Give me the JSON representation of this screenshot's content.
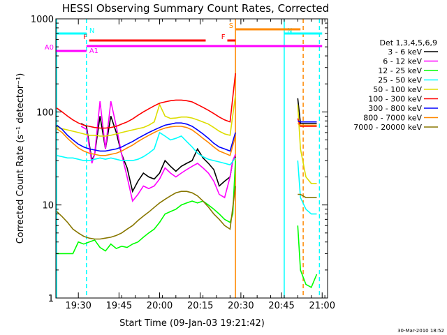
{
  "chart_data": {
    "type": "line",
    "title": "HESSI Observing Summary Count Rates, Corrected",
    "xlabel": "Start Time (09-Jan-03 19:21:42)",
    "ylabel": "Corrected Count Rate (s⁻¹ detector⁻¹)",
    "yscale": "log",
    "ylim": [
      1,
      1000
    ],
    "xlim": [
      "19:21:42",
      "21:02:00"
    ],
    "x_ticks": [
      "19:30",
      "19:45",
      "20:00",
      "20:15",
      "20:30",
      "20:45",
      "21:00"
    ],
    "y_ticks": [
      "1",
      "10",
      "100",
      "1000"
    ],
    "grid": false,
    "legend_title": "Det 1,3,4,5,6,9",
    "legend_position": "right",
    "series": [
      {
        "name": "3 - 6 keV",
        "color": "#000000",
        "x": [
          "19:31",
          "19:33",
          "19:35",
          "19:36",
          "19:38",
          "19:40",
          "19:42",
          "19:44",
          "19:46",
          "19:48",
          "19:50",
          "19:52",
          "19:54",
          "19:56",
          "19:58",
          "20:00",
          "20:02",
          "20:04",
          "20:06",
          "20:08",
          "20:10",
          "20:12",
          "20:14",
          "20:16",
          "20:18",
          "20:20",
          "20:22",
          "20:24",
          "20:26",
          "20:27",
          "20:28",
          "20:51",
          "20:52",
          "20:54",
          "20:56",
          "20:58"
        ],
        "values": [
          75,
          70,
          30,
          35,
          90,
          40,
          90,
          60,
          35,
          25,
          14,
          18,
          22,
          20,
          19,
          22,
          30,
          26,
          23,
          26,
          28,
          30,
          40,
          32,
          28,
          24,
          16,
          18,
          20,
          30,
          33,
          140,
          75,
          75,
          75,
          75
        ]
      },
      {
        "name": "6 - 12 keV",
        "color": "#ff00ff",
        "x": [
          "19:31",
          "19:33",
          "19:35",
          "19:36",
          "19:38",
          "19:40",
          "19:42",
          "19:44",
          "19:46",
          "19:48",
          "19:50",
          "19:52",
          "19:54",
          "19:56",
          "19:58",
          "20:00",
          "20:02",
          "20:04",
          "20:06",
          "20:08",
          "20:10",
          "20:12",
          "20:14",
          "20:16",
          "20:18",
          "20:20",
          "20:22",
          "20:24",
          "20:26",
          "20:27",
          "20:28"
        ],
        "values": [
          70,
          65,
          28,
          35,
          130,
          40,
          130,
          70,
          35,
          20,
          11,
          13,
          16,
          15,
          16,
          19,
          25,
          22,
          20,
          22,
          24,
          26,
          28,
          25,
          22,
          18,
          13,
          12,
          20,
          30,
          35
        ]
      },
      {
        "name": "12 - 25 keV",
        "color": "#00ff00",
        "x": [
          "19:22",
          "19:24",
          "19:26",
          "19:28",
          "19:30",
          "19:32",
          "19:34",
          "19:36",
          "19:38",
          "19:40",
          "19:42",
          "19:44",
          "19:46",
          "19:48",
          "19:50",
          "19:52",
          "19:54",
          "19:56",
          "19:58",
          "20:00",
          "20:02",
          "20:04",
          "20:06",
          "20:08",
          "20:10",
          "20:12",
          "20:14",
          "20:16",
          "20:18",
          "20:20",
          "20:22",
          "20:24",
          "20:26",
          "20:27",
          "20:28",
          "20:51",
          "20:52",
          "20:54",
          "20:56",
          "20:58"
        ],
        "values": [
          3,
          3,
          3,
          3,
          4,
          3.8,
          4,
          4.2,
          3.5,
          3.2,
          3.8,
          3.4,
          3.6,
          3.5,
          3.8,
          4,
          4.5,
          5,
          5.5,
          6.5,
          8,
          8.5,
          9,
          10,
          10.5,
          11,
          10.5,
          11,
          10,
          9,
          8,
          7,
          6.5,
          8,
          30,
          6,
          2,
          1.4,
          1.3,
          1.8
        ]
      },
      {
        "name": "25 - 50 keV",
        "color": "#00ffff",
        "x": [
          "19:22",
          "19:24",
          "19:26",
          "19:28",
          "19:30",
          "19:32",
          "19:34",
          "19:36",
          "19:38",
          "19:40",
          "19:42",
          "19:44",
          "19:46",
          "19:48",
          "19:50",
          "19:52",
          "19:54",
          "19:56",
          "19:58",
          "20:00",
          "20:02",
          "20:04",
          "20:06",
          "20:08",
          "20:10",
          "20:12",
          "20:14",
          "20:16",
          "20:18",
          "20:20",
          "20:22",
          "20:24",
          "20:26",
          "20:28",
          "20:51",
          "20:52",
          "20:54",
          "20:56",
          "20:58"
        ],
        "values": [
          34,
          33,
          32,
          32,
          31,
          30,
          30,
          31,
          32,
          31,
          32,
          31,
          30,
          30,
          30,
          31,
          33,
          36,
          40,
          60,
          55,
          50,
          52,
          55,
          48,
          42,
          36,
          33,
          31,
          30,
          29,
          28,
          27,
          32,
          30,
          12,
          9,
          8,
          8
        ]
      },
      {
        "name": "50 - 100 keV",
        "color": "#dddd00",
        "x": [
          "19:22",
          "19:24",
          "19:26",
          "19:28",
          "19:30",
          "19:32",
          "19:34",
          "19:36",
          "19:38",
          "19:40",
          "19:42",
          "19:44",
          "19:46",
          "19:48",
          "19:50",
          "19:52",
          "19:54",
          "19:56",
          "19:58",
          "20:00",
          "20:02",
          "20:04",
          "20:06",
          "20:08",
          "20:10",
          "20:12",
          "20:14",
          "20:16",
          "20:18",
          "20:20",
          "20:22",
          "20:24",
          "20:26",
          "20:28",
          "20:51",
          "20:52",
          "20:54",
          "20:56",
          "20:58"
        ],
        "values": [
          68,
          66,
          64,
          62,
          60,
          58,
          56,
          56,
          55,
          55,
          56,
          58,
          60,
          62,
          64,
          66,
          68,
          72,
          78,
          120,
          90,
          85,
          86,
          88,
          88,
          86,
          82,
          78,
          74,
          68,
          62,
          58,
          56,
          150,
          120,
          40,
          20,
          17,
          17
        ]
      },
      {
        "name": "100 - 300 keV",
        "color": "#ff0000",
        "x": [
          "19:22",
          "19:24",
          "19:26",
          "19:28",
          "19:30",
          "19:32",
          "19:34",
          "19:36",
          "19:38",
          "19:40",
          "19:42",
          "19:44",
          "19:46",
          "19:48",
          "19:50",
          "19:52",
          "19:54",
          "19:56",
          "19:58",
          "20:00",
          "20:02",
          "20:04",
          "20:06",
          "20:08",
          "20:10",
          "20:12",
          "20:14",
          "20:16",
          "20:18",
          "20:20",
          "20:22",
          "20:24",
          "20:26",
          "20:28",
          "20:51",
          "20:52",
          "20:54",
          "20:56",
          "20:58"
        ],
        "values": [
          110,
          100,
          90,
          82,
          76,
          72,
          70,
          68,
          67,
          67,
          68,
          70,
          74,
          78,
          84,
          92,
          100,
          108,
          116,
          124,
          128,
          132,
          134,
          134,
          132,
          128,
          120,
          112,
          104,
          96,
          88,
          82,
          78,
          260,
          85,
          70,
          70,
          70,
          70
        ]
      },
      {
        "name": "300 - 800 keV",
        "color": "#0000ff",
        "x": [
          "19:22",
          "19:24",
          "19:26",
          "19:28",
          "19:30",
          "19:32",
          "19:34",
          "19:36",
          "19:38",
          "19:40",
          "19:42",
          "19:44",
          "19:46",
          "19:48",
          "19:50",
          "19:52",
          "19:54",
          "19:56",
          "19:58",
          "20:00",
          "20:02",
          "20:04",
          "20:06",
          "20:08",
          "20:10",
          "20:12",
          "20:14",
          "20:16",
          "20:18",
          "20:20",
          "20:22",
          "20:24",
          "20:26",
          "20:28",
          "20:51",
          "20:52",
          "20:54",
          "20:56",
          "20:58"
        ],
        "values": [
          72,
          65,
          56,
          50,
          45,
          42,
          40,
          39,
          38,
          38,
          39,
          40,
          42,
          45,
          48,
          52,
          56,
          60,
          64,
          68,
          72,
          74,
          76,
          76,
          74,
          70,
          64,
          58,
          52,
          46,
          42,
          40,
          38,
          60,
          80,
          78,
          78,
          78,
          78
        ]
      },
      {
        "name": "800 - 7000 keV",
        "color": "#ff8800",
        "x": [
          "19:22",
          "19:24",
          "19:26",
          "19:28",
          "19:30",
          "19:32",
          "19:34",
          "19:36",
          "19:38",
          "19:40",
          "19:42",
          "19:44",
          "19:46",
          "19:48",
          "19:50",
          "19:52",
          "19:54",
          "19:56",
          "19:58",
          "20:00",
          "20:02",
          "20:04",
          "20:06",
          "20:08",
          "20:10",
          "20:12",
          "20:14",
          "20:16",
          "20:18",
          "20:20",
          "20:22",
          "20:24",
          "20:26",
          "20:28",
          "20:51",
          "20:52",
          "20:54",
          "20:56",
          "20:58"
        ],
        "values": [
          66,
          60,
          52,
          46,
          41,
          38,
          36,
          35,
          34,
          34,
          35,
          36,
          38,
          41,
          44,
          48,
          52,
          56,
          60,
          64,
          67,
          69,
          70,
          70,
          68,
          64,
          58,
          52,
          47,
          42,
          38,
          36,
          34,
          55,
          75,
          72,
          72,
          72,
          72
        ]
      },
      {
        "name": "7000 - 20000 keV",
        "color": "#887700",
        "x": [
          "19:22",
          "19:24",
          "19:26",
          "19:28",
          "19:30",
          "19:32",
          "19:34",
          "19:36",
          "19:38",
          "19:40",
          "19:42",
          "19:44",
          "19:46",
          "19:48",
          "19:50",
          "19:52",
          "19:54",
          "19:56",
          "19:58",
          "20:00",
          "20:02",
          "20:04",
          "20:06",
          "20:08",
          "20:10",
          "20:12",
          "20:14",
          "20:16",
          "20:18",
          "20:20",
          "20:22",
          "20:24",
          "20:26",
          "20:28",
          "20:51",
          "20:52",
          "20:54",
          "20:56",
          "20:58"
        ],
        "values": [
          8.5,
          7.5,
          6.5,
          5.5,
          5,
          4.6,
          4.4,
          4.3,
          4.3,
          4.4,
          4.5,
          4.7,
          5,
          5.5,
          6,
          6.8,
          7.6,
          8.4,
          9.4,
          10.5,
          11.5,
          12.5,
          13.5,
          14,
          14,
          13.5,
          12.5,
          11,
          9.5,
          8,
          7,
          6,
          5.5,
          16,
          13,
          13,
          12,
          12,
          12
        ]
      }
    ],
    "attenuator_bars": [
      {
        "label": "F",
        "color": "#ff0000",
        "start": "19:34",
        "end": "20:17"
      },
      {
        "label": "F",
        "color": "#ff0000",
        "start": "20:25",
        "end": "20:28"
      },
      {
        "label": "A0",
        "color": "#ff00ff",
        "start": "19:21:42",
        "end": "19:33"
      },
      {
        "label": "A1",
        "color": "#ff00ff",
        "start": "19:33",
        "end": "21:00"
      },
      {
        "label": "N",
        "color": "#00ffff",
        "start": "19:21:42",
        "end": "19:33"
      },
      {
        "label": "N",
        "color": "#00ffff",
        "start": "20:46",
        "end": "21:00"
      },
      {
        "label": "S",
        "color": "#ff8800",
        "start": "20:28",
        "end": "20:52"
      }
    ],
    "vertical_markers": [
      {
        "time": "19:22",
        "color": "#00ffff",
        "style": "solid"
      },
      {
        "time": "19:33",
        "color": "#00ffff",
        "style": "dashed"
      },
      {
        "time": "20:28",
        "color": "#ff8800",
        "style": "solid"
      },
      {
        "time": "20:46",
        "color": "#00ffff",
        "style": "solid"
      },
      {
        "time": "20:53",
        "color": "#ff8800",
        "style": "dashed"
      },
      {
        "time": "20:59",
        "color": "#00ffff",
        "style": "dashed"
      }
    ],
    "footer_date": "30-Mar-2010 18:52"
  }
}
